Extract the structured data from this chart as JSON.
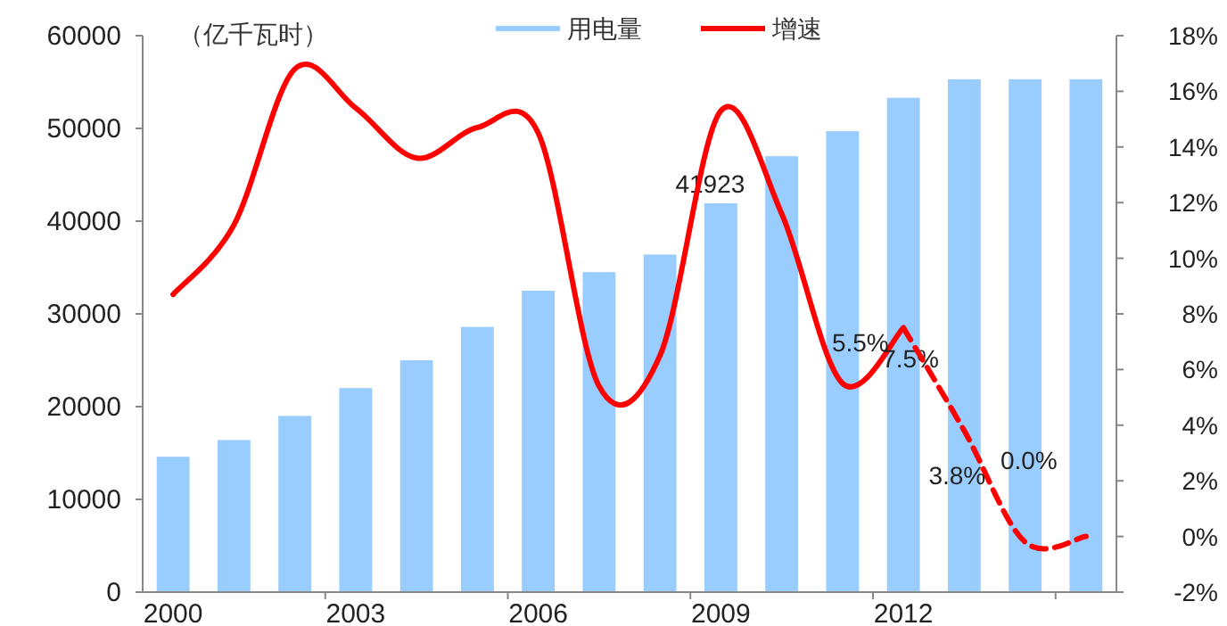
{
  "chart_data": {
    "type": "bar",
    "ylabel": "（亿千瓦时）",
    "legend": "top",
    "categories": [
      "2000",
      null,
      null,
      "2003",
      null,
      null,
      "2006",
      null,
      null,
      "2009",
      null,
      null,
      "2012",
      null,
      null,
      null
    ],
    "ylim": [
      0,
      60000
    ],
    "yticks": [
      0,
      10000,
      20000,
      30000,
      40000,
      50000,
      60000
    ],
    "y2lim": [
      -2,
      18
    ],
    "y2ticks": [
      {
        "value": -2,
        "label": "-2%"
      },
      {
        "value": 0,
        "label": "0%"
      },
      {
        "value": 2,
        "label": "2%"
      },
      {
        "value": 4,
        "label": "4%"
      },
      {
        "value": 6,
        "label": "6%"
      },
      {
        "value": 8,
        "label": "8%"
      },
      {
        "value": 10,
        "label": "10%"
      },
      {
        "value": 12,
        "label": "12%"
      },
      {
        "value": 14,
        "label": "14%"
      },
      {
        "value": 16,
        "label": "16%"
      },
      {
        "value": 18,
        "label": "18%"
      }
    ],
    "series": [
      {
        "name": "用电量",
        "color": "#99ccff",
        "values": [
          14600,
          16400,
          19000,
          22000,
          25000,
          28600,
          32500,
          34500,
          36400,
          41923,
          47000,
          49700,
          53300,
          55300,
          55300,
          55300
        ],
        "value_labels": [
          null,
          null,
          null,
          null,
          null,
          null,
          null,
          null,
          null,
          "41923",
          null,
          null,
          null,
          null,
          null,
          null
        ]
      },
      {
        "name": "增速",
        "type": "line",
        "axis": "y2",
        "color": "#ff0000",
        "line_style": "solid",
        "values": [
          8.7,
          11.2,
          16.8,
          15.4,
          13.6,
          14.7,
          14.5,
          5.4,
          6.5,
          15.3,
          11.6,
          5.5,
          7.5,
          null,
          null,
          null
        ],
        "value_labels": [
          null,
          null,
          null,
          null,
          null,
          null,
          null,
          null,
          null,
          null,
          null,
          "5.5%",
          "7.5%",
          null,
          null,
          null
        ]
      },
      {
        "type": "line",
        "axis": "y2",
        "color": "#ff0000",
        "line_style": "dashed",
        "values": [
          null,
          null,
          null,
          null,
          null,
          null,
          null,
          null,
          null,
          null,
          null,
          null,
          7.5,
          3.8,
          -0.2,
          0.0
        ],
        "value_labels": [
          null,
          null,
          null,
          null,
          null,
          null,
          null,
          null,
          null,
          null,
          null,
          null,
          null,
          "3.8%",
          null,
          "0.0%"
        ]
      }
    ]
  }
}
